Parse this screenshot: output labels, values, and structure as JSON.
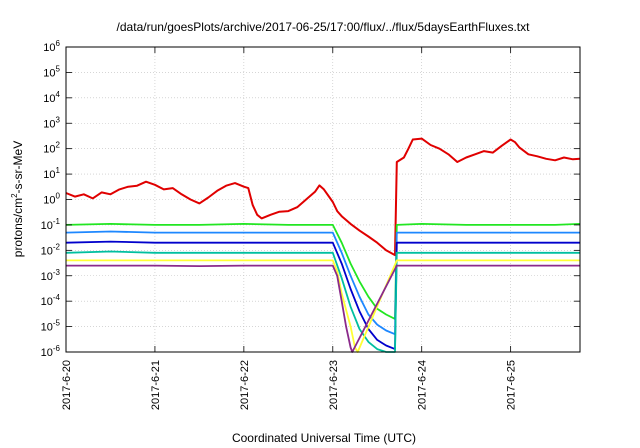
{
  "chart_data": {
    "type": "line",
    "title": "/data/run/goesPlots/archive/2017-06-25/17:00/flux/../flux/5daysEarthFluxes.txt",
    "xlabel": "Coordinated Universal Time (UTC)",
    "ylabel_prefix": "protons/cm",
    "ylabel_sup": "2",
    "ylabel_suffix": "-s-sr-MeV",
    "x_tick_labels": [
      "2017-6-20",
      "2017-6-21",
      "2017-6-22",
      "2017-6-23",
      "2017-6-24",
      "2017-6-25"
    ],
    "x_tick_days": [
      0,
      1,
      2,
      3,
      4,
      5
    ],
    "xlim_days": [
      0,
      5.78
    ],
    "y_scale": "log",
    "ylim_exp": [
      -6,
      6
    ],
    "y_tick_exps": [
      -6,
      -5,
      -4,
      -3,
      -2,
      -1,
      0,
      1,
      2,
      3,
      4,
      5,
      6
    ],
    "y_tick_base": "10",
    "grid": true,
    "legend": "none",
    "series": [
      {
        "color": "#e00000",
        "points": [
          [
            0.0,
            1.8
          ],
          [
            0.1,
            1.3
          ],
          [
            0.2,
            1.6
          ],
          [
            0.3,
            1.1
          ],
          [
            0.4,
            1.9
          ],
          [
            0.5,
            1.6
          ],
          [
            0.6,
            2.5
          ],
          [
            0.7,
            3.2
          ],
          [
            0.8,
            3.5
          ],
          [
            0.9,
            5.0
          ],
          [
            1.0,
            3.8
          ],
          [
            1.1,
            2.5
          ],
          [
            1.2,
            2.8
          ],
          [
            1.3,
            1.6
          ],
          [
            1.4,
            1.0
          ],
          [
            1.5,
            0.7
          ],
          [
            1.6,
            1.2
          ],
          [
            1.7,
            2.2
          ],
          [
            1.8,
            3.5
          ],
          [
            1.9,
            4.4
          ],
          [
            2.0,
            3.2
          ],
          [
            2.05,
            2.8
          ],
          [
            2.1,
            0.6
          ],
          [
            2.15,
            0.25
          ],
          [
            2.2,
            0.18
          ],
          [
            2.3,
            0.25
          ],
          [
            2.4,
            0.33
          ],
          [
            2.5,
            0.35
          ],
          [
            2.6,
            0.5
          ],
          [
            2.7,
            1.0
          ],
          [
            2.8,
            2.0
          ],
          [
            2.85,
            3.6
          ],
          [
            2.9,
            2.5
          ],
          [
            3.0,
            0.8
          ],
          [
            3.05,
            0.35
          ],
          [
            3.1,
            0.22
          ],
          [
            3.2,
            0.11
          ],
          [
            3.3,
            0.06
          ],
          [
            3.4,
            0.035
          ],
          [
            3.5,
            0.02
          ],
          [
            3.6,
            0.01
          ],
          [
            3.7,
            0.0065
          ],
          [
            3.72,
            30
          ],
          [
            3.8,
            45
          ],
          [
            3.85,
            100
          ],
          [
            3.9,
            230
          ],
          [
            4.0,
            250
          ],
          [
            4.1,
            140
          ],
          [
            4.2,
            100
          ],
          [
            4.3,
            60
          ],
          [
            4.4,
            30
          ],
          [
            4.5,
            45
          ],
          [
            4.6,
            60
          ],
          [
            4.7,
            80
          ],
          [
            4.8,
            70
          ],
          [
            4.9,
            130
          ],
          [
            5.0,
            230
          ],
          [
            5.05,
            180
          ],
          [
            5.1,
            110
          ],
          [
            5.2,
            60
          ],
          [
            5.3,
            50
          ],
          [
            5.4,
            40
          ],
          [
            5.5,
            35
          ],
          [
            5.6,
            45
          ],
          [
            5.7,
            38
          ],
          [
            5.78,
            40
          ]
        ]
      },
      {
        "color": "#22e622",
        "points": [
          [
            0.0,
            0.1
          ],
          [
            0.5,
            0.11
          ],
          [
            1.0,
            0.1
          ],
          [
            1.5,
            0.1
          ],
          [
            2.0,
            0.11
          ],
          [
            2.5,
            0.1
          ],
          [
            3.0,
            0.1
          ],
          [
            3.1,
            0.02
          ],
          [
            3.2,
            0.003
          ],
          [
            3.3,
            0.0006
          ],
          [
            3.4,
            0.00015
          ],
          [
            3.5,
            5e-05
          ],
          [
            3.6,
            3e-05
          ],
          [
            3.7,
            2e-05
          ],
          [
            3.72,
            0.1
          ],
          [
            4.0,
            0.11
          ],
          [
            4.5,
            0.1
          ],
          [
            5.0,
            0.1
          ],
          [
            5.5,
            0.1
          ],
          [
            5.78,
            0.11
          ]
        ]
      },
      {
        "color": "#1e88ff",
        "points": [
          [
            0.0,
            0.05
          ],
          [
            0.5,
            0.055
          ],
          [
            1.0,
            0.05
          ],
          [
            1.5,
            0.05
          ],
          [
            2.0,
            0.05
          ],
          [
            2.5,
            0.05
          ],
          [
            3.0,
            0.05
          ],
          [
            3.1,
            0.008
          ],
          [
            3.2,
            0.001
          ],
          [
            3.3,
            0.00015
          ],
          [
            3.4,
            3e-05
          ],
          [
            3.5,
            1.2e-05
          ],
          [
            3.6,
            7e-06
          ],
          [
            3.7,
            5e-06
          ],
          [
            3.72,
            0.05
          ],
          [
            4.0,
            0.05
          ],
          [
            4.5,
            0.05
          ],
          [
            5.0,
            0.05
          ],
          [
            5.5,
            0.05
          ],
          [
            5.78,
            0.05
          ]
        ]
      },
      {
        "color": "#0000cc",
        "points": [
          [
            0.0,
            0.02
          ],
          [
            0.5,
            0.022
          ],
          [
            1.0,
            0.02
          ],
          [
            1.5,
            0.02
          ],
          [
            2.0,
            0.02
          ],
          [
            2.5,
            0.02
          ],
          [
            3.0,
            0.02
          ],
          [
            3.1,
            0.003
          ],
          [
            3.2,
            0.0003
          ],
          [
            3.3,
            4e-05
          ],
          [
            3.4,
            8e-06
          ],
          [
            3.5,
            3e-06
          ],
          [
            3.6,
            1.8e-06
          ],
          [
            3.7,
            1.3e-06
          ],
          [
            3.72,
            0.02
          ],
          [
            4.0,
            0.02
          ],
          [
            4.5,
            0.02
          ],
          [
            5.0,
            0.02
          ],
          [
            5.5,
            0.02
          ],
          [
            5.78,
            0.02
          ]
        ]
      },
      {
        "color": "#00bfa0",
        "points": [
          [
            0.0,
            0.008
          ],
          [
            0.5,
            0.009
          ],
          [
            1.0,
            0.008
          ],
          [
            1.5,
            0.008
          ],
          [
            2.0,
            0.008
          ],
          [
            2.5,
            0.008
          ],
          [
            3.0,
            0.008
          ],
          [
            3.1,
            0.0008
          ],
          [
            3.2,
            6e-05
          ],
          [
            3.3,
            8e-06
          ],
          [
            3.4,
            2.5e-06
          ],
          [
            3.5,
            1.3e-06
          ],
          [
            3.6,
            1e-06
          ],
          [
            3.7,
            1e-06
          ],
          [
            3.72,
            0.008
          ],
          [
            4.0,
            0.008
          ],
          [
            4.5,
            0.008
          ],
          [
            5.0,
            0.008
          ],
          [
            5.5,
            0.008
          ],
          [
            5.78,
            0.008
          ]
        ]
      },
      {
        "color": "#ffff33",
        "points": [
          [
            0.0,
            0.004
          ],
          [
            0.5,
            0.004
          ],
          [
            1.0,
            0.004
          ],
          [
            1.5,
            0.004
          ],
          [
            2.0,
            0.004
          ],
          [
            2.5,
            0.004
          ],
          [
            3.0,
            0.004
          ],
          [
            3.05,
            0.0015
          ],
          [
            3.1,
            0.0002
          ],
          [
            3.2,
            1e-05
          ],
          [
            3.25,
            1.5e-06
          ],
          [
            3.28,
            1e-06
          ],
          [
            3.72,
            0.004
          ],
          [
            4.0,
            0.004
          ],
          [
            4.5,
            0.004
          ],
          [
            5.0,
            0.004
          ],
          [
            5.5,
            0.004
          ],
          [
            5.78,
            0.004
          ]
        ]
      },
      {
        "color": "#8b2a8b",
        "points": [
          [
            0.0,
            0.0025
          ],
          [
            0.5,
            0.0025
          ],
          [
            1.0,
            0.0025
          ],
          [
            1.5,
            0.0024
          ],
          [
            2.0,
            0.0025
          ],
          [
            2.5,
            0.0025
          ],
          [
            3.0,
            0.0025
          ],
          [
            3.05,
            0.001
          ],
          [
            3.1,
            0.0001
          ],
          [
            3.15,
            1e-05
          ],
          [
            3.2,
            1.5e-06
          ],
          [
            3.22,
            1e-06
          ],
          [
            3.72,
            0.0025
          ],
          [
            4.0,
            0.0025
          ],
          [
            4.5,
            0.0025
          ],
          [
            5.0,
            0.0025
          ],
          [
            5.5,
            0.0025
          ],
          [
            5.78,
            0.0025
          ]
        ]
      }
    ]
  }
}
